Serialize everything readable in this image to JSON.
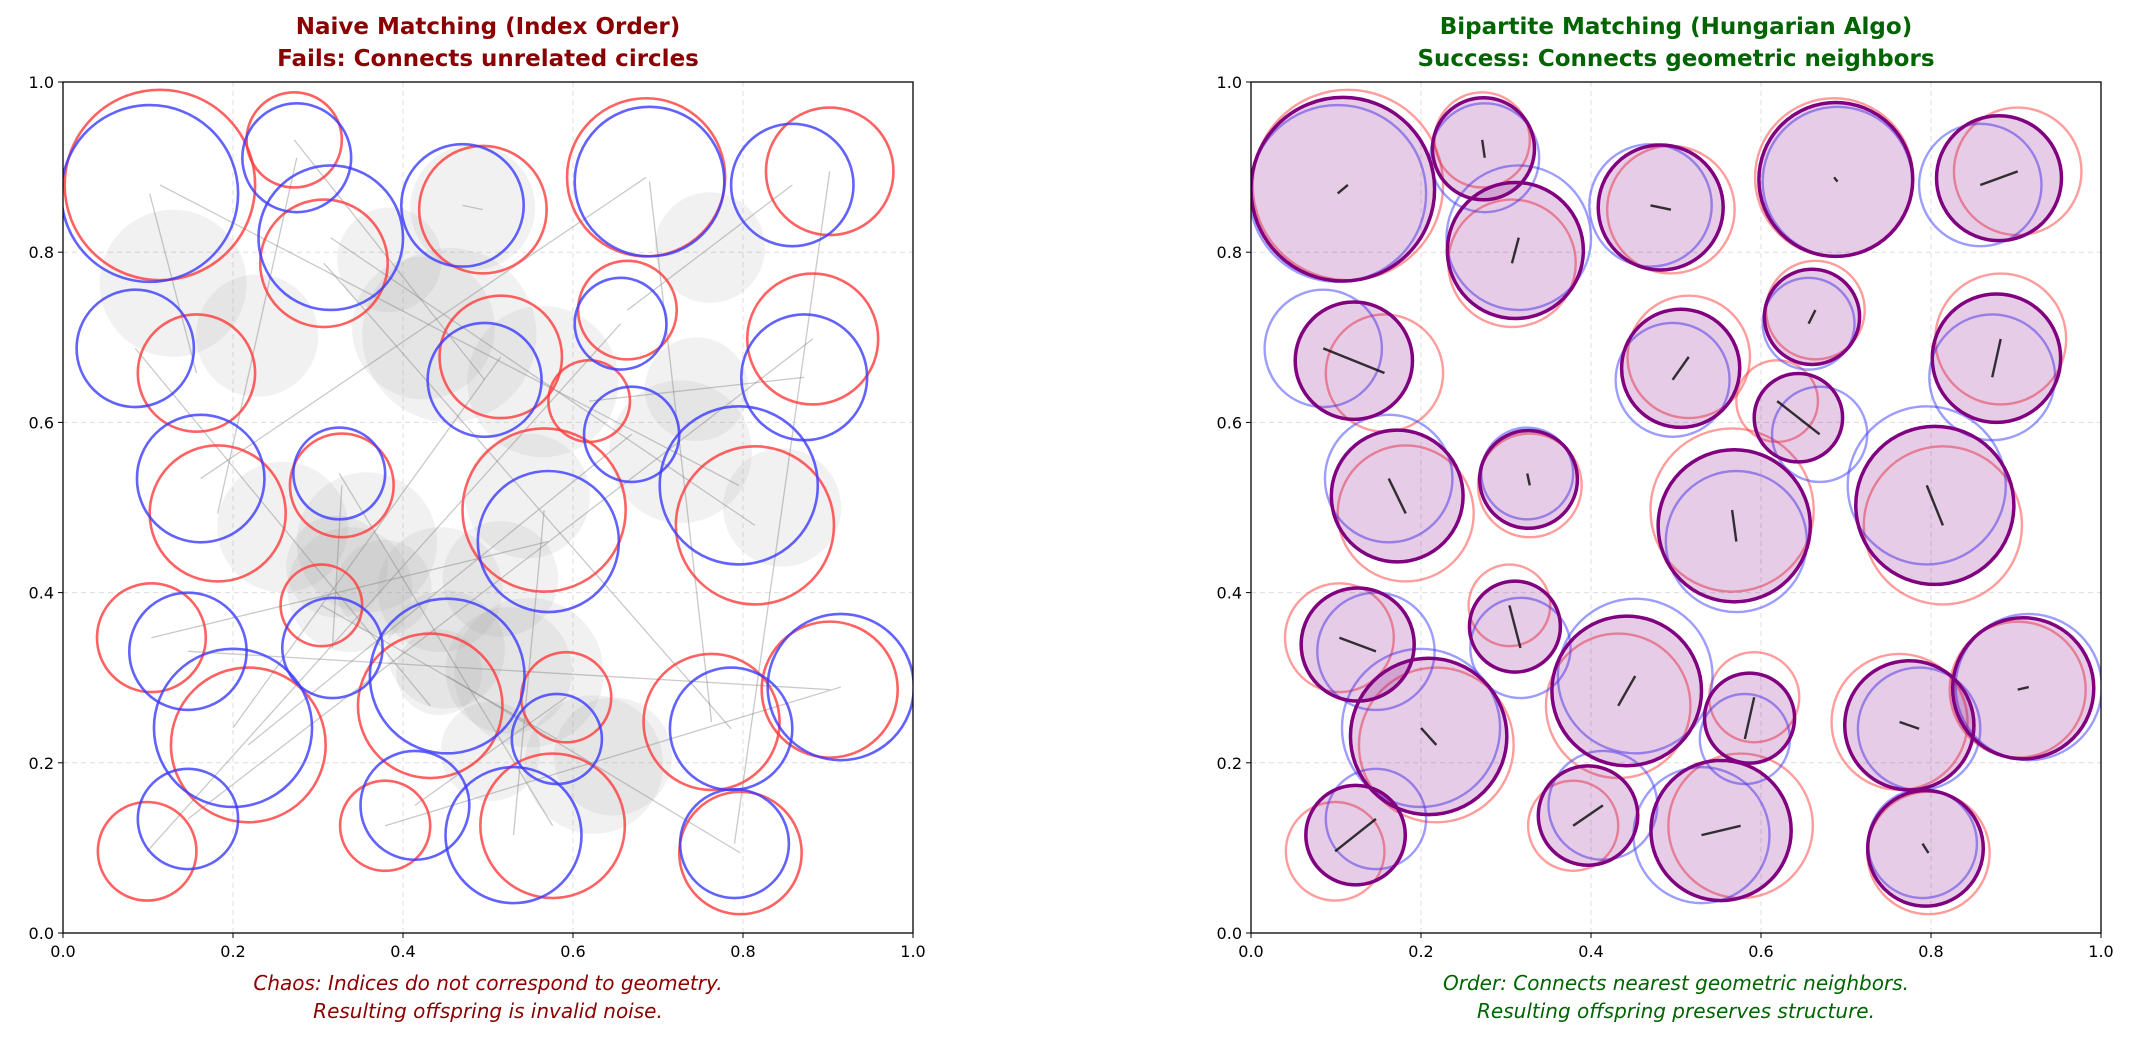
{
  "chart_data": [
    {
      "type": "scatter",
      "panel": "left",
      "title_line1": "Naive Matching (Index Order)",
      "title_line2": "Fails: Connects unrelated circles",
      "title_color": "#8b0000",
      "caption_line1": "Chaos: Indices do not correspond to geometry.",
      "caption_line2": "Resulting offspring is invalid noise.",
      "xlim": [
        0,
        1
      ],
      "ylim": [
        0,
        1
      ],
      "ticks": [
        "0.0",
        "0.2",
        "0.4",
        "0.6",
        "0.8",
        "1.0"
      ],
      "grid": true,
      "pairing": [
        14,
        7,
        20,
        3,
        11,
        25,
        0,
        18,
        5,
        22,
        9,
        1,
        16,
        24,
        2,
        13,
        19,
        6,
        10,
        23,
        4,
        15,
        8,
        21,
        12,
        17
      ],
      "offspring_color": "#999999"
    },
    {
      "type": "scatter",
      "panel": "right",
      "title_line1": "Bipartite Matching (Hungarian Algo)",
      "title_line2": "Success: Connects geometric neighbors",
      "title_color": "#006400",
      "caption_line1": "Order: Connects nearest geometric neighbors.",
      "caption_line2": "Resulting offspring preserves structure.",
      "xlim": [
        0,
        1
      ],
      "ylim": [
        0,
        1
      ],
      "ticks": [
        "0.0",
        "0.2",
        "0.4",
        "0.6",
        "0.8",
        "1.0"
      ],
      "grid": true,
      "pairing": "nearest",
      "offspring_color": "#800080"
    }
  ],
  "circles": {
    "parent_a_color": "#ff3b3b",
    "parent_b_color": "#3b3bff",
    "parent_a": [
      [
        0.114,
        0.879,
        0.112
      ],
      [
        0.272,
        0.932,
        0.056
      ],
      [
        0.307,
        0.787,
        0.075
      ],
      [
        0.494,
        0.85,
        0.075
      ],
      [
        0.686,
        0.888,
        0.093
      ],
      [
        0.902,
        0.895,
        0.075
      ],
      [
        0.157,
        0.658,
        0.069
      ],
      [
        0.515,
        0.677,
        0.072
      ],
      [
        0.664,
        0.732,
        0.058
      ],
      [
        0.882,
        0.698,
        0.077
      ],
      [
        0.619,
        0.625,
        0.048
      ],
      [
        0.182,
        0.493,
        0.08
      ],
      [
        0.328,
        0.526,
        0.061
      ],
      [
        0.566,
        0.497,
        0.096
      ],
      [
        0.814,
        0.479,
        0.093
      ],
      [
        0.104,
        0.347,
        0.064
      ],
      [
        0.304,
        0.385,
        0.048
      ],
      [
        0.432,
        0.267,
        0.085
      ],
      [
        0.218,
        0.221,
        0.091
      ],
      [
        0.592,
        0.277,
        0.053
      ],
      [
        0.763,
        0.248,
        0.08
      ],
      [
        0.902,
        0.286,
        0.08
      ],
      [
        0.099,
        0.096,
        0.058
      ],
      [
        0.379,
        0.126,
        0.053
      ],
      [
        0.576,
        0.126,
        0.085
      ],
      [
        0.797,
        0.094,
        0.072
      ]
    ],
    "parent_b": [
      [
        0.102,
        0.869,
        0.104
      ],
      [
        0.275,
        0.911,
        0.064
      ],
      [
        0.315,
        0.817,
        0.085
      ],
      [
        0.47,
        0.855,
        0.072
      ],
      [
        0.69,
        0.883,
        0.088
      ],
      [
        0.858,
        0.879,
        0.072
      ],
      [
        0.085,
        0.687,
        0.069
      ],
      [
        0.496,
        0.65,
        0.067
      ],
      [
        0.656,
        0.716,
        0.054
      ],
      [
        0.872,
        0.653,
        0.074
      ],
      [
        0.669,
        0.586,
        0.056
      ],
      [
        0.162,
        0.534,
        0.075
      ],
      [
        0.325,
        0.54,
        0.054
      ],
      [
        0.571,
        0.46,
        0.083
      ],
      [
        0.795,
        0.526,
        0.093
      ],
      [
        0.147,
        0.331,
        0.069
      ],
      [
        0.317,
        0.335,
        0.059
      ],
      [
        0.452,
        0.302,
        0.091
      ],
      [
        0.2,
        0.241,
        0.093
      ],
      [
        0.581,
        0.228,
        0.053
      ],
      [
        0.786,
        0.24,
        0.072
      ],
      [
        0.915,
        0.289,
        0.086
      ],
      [
        0.147,
        0.134,
        0.059
      ],
      [
        0.414,
        0.15,
        0.064
      ],
      [
        0.53,
        0.115,
        0.08
      ],
      [
        0.79,
        0.105,
        0.064
      ]
    ]
  }
}
